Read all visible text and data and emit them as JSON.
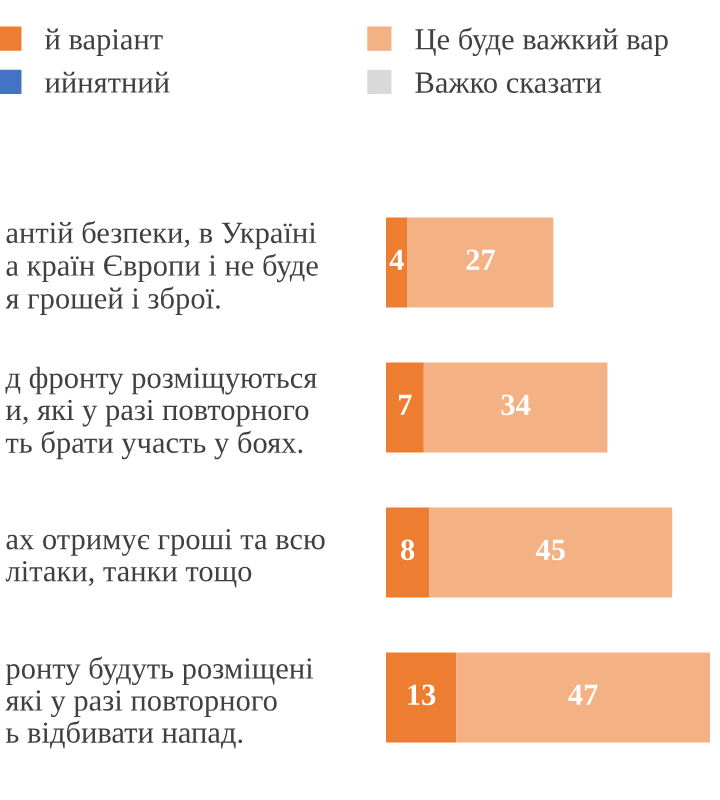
{
  "chart_data": {
    "type": "bar",
    "orientation": "horizontal",
    "stacked": true,
    "data_labels": true,
    "legend": "top",
    "grid": false,
    "tick_labels": "y",
    "categories": [
      "антій безпеки, в Україні\nа країн Європи і не буде\nя грошей і зброї.",
      "д фронту розміщуються\nи, які у разі повторного\nть брати участь у боях.",
      "ах отримує гроші та всю\nлітаки, танки тощо",
      "ронту будуть розміщені\nякі у разі повторного\nь відбивати напад."
    ],
    "series": [
      {
        "name": "й варіант",
        "color": "#ed7d31",
        "values": [
          4,
          7,
          8,
          13
        ]
      },
      {
        "name": "Це буде важкий вар",
        "color": "#f4b183",
        "values": [
          27,
          34,
          45,
          47
        ]
      },
      {
        "name": "ийнятний",
        "color": "#4472c4",
        "values": [
          null,
          null,
          null,
          null
        ]
      },
      {
        "name": "Важко сказати",
        "color": "#d9d9d9",
        "values": [
          null,
          null,
          null,
          null
        ]
      }
    ]
  }
}
